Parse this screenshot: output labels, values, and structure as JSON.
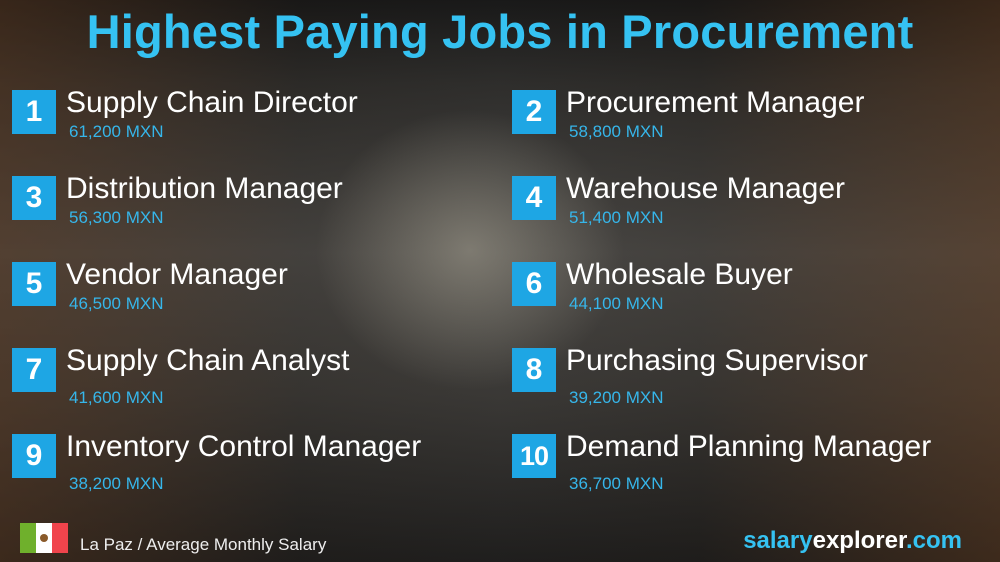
{
  "title": "Highest Paying Jobs in Procurement",
  "jobs": [
    {
      "rank": "1",
      "title": "Supply Chain Director",
      "salary": "61,200 MXN"
    },
    {
      "rank": "2",
      "title": "Procurement Manager",
      "salary": "58,800 MXN"
    },
    {
      "rank": "3",
      "title": "Distribution Manager",
      "salary": "56,300 MXN"
    },
    {
      "rank": "4",
      "title": "Warehouse Manager",
      "salary": "51,400 MXN"
    },
    {
      "rank": "5",
      "title": "Vendor Manager",
      "salary": "46,500 MXN"
    },
    {
      "rank": "6",
      "title": "Wholesale Buyer",
      "salary": "44,100 MXN"
    },
    {
      "rank": "7",
      "title": "Supply Chain Analyst",
      "salary": "41,600 MXN"
    },
    {
      "rank": "8",
      "title": "Purchasing Supervisor",
      "salary": "39,200 MXN"
    },
    {
      "rank": "9",
      "title": "Inventory Control Manager",
      "salary": "38,200 MXN"
    },
    {
      "rank": "10",
      "title": "Demand Planning Manager",
      "salary": "36,700 MXN"
    }
  ],
  "footer": {
    "flag_icon": "mexico-flag-icon",
    "location_text": "La Paz / Average Monthly Salary"
  },
  "brand": {
    "part1": "salary",
    "part2": "explorer",
    "part3": ".com"
  },
  "colors": {
    "accent": "#35c2f2",
    "rank_box": "#1ea6e4",
    "salary_text": "#36b6ea"
  }
}
